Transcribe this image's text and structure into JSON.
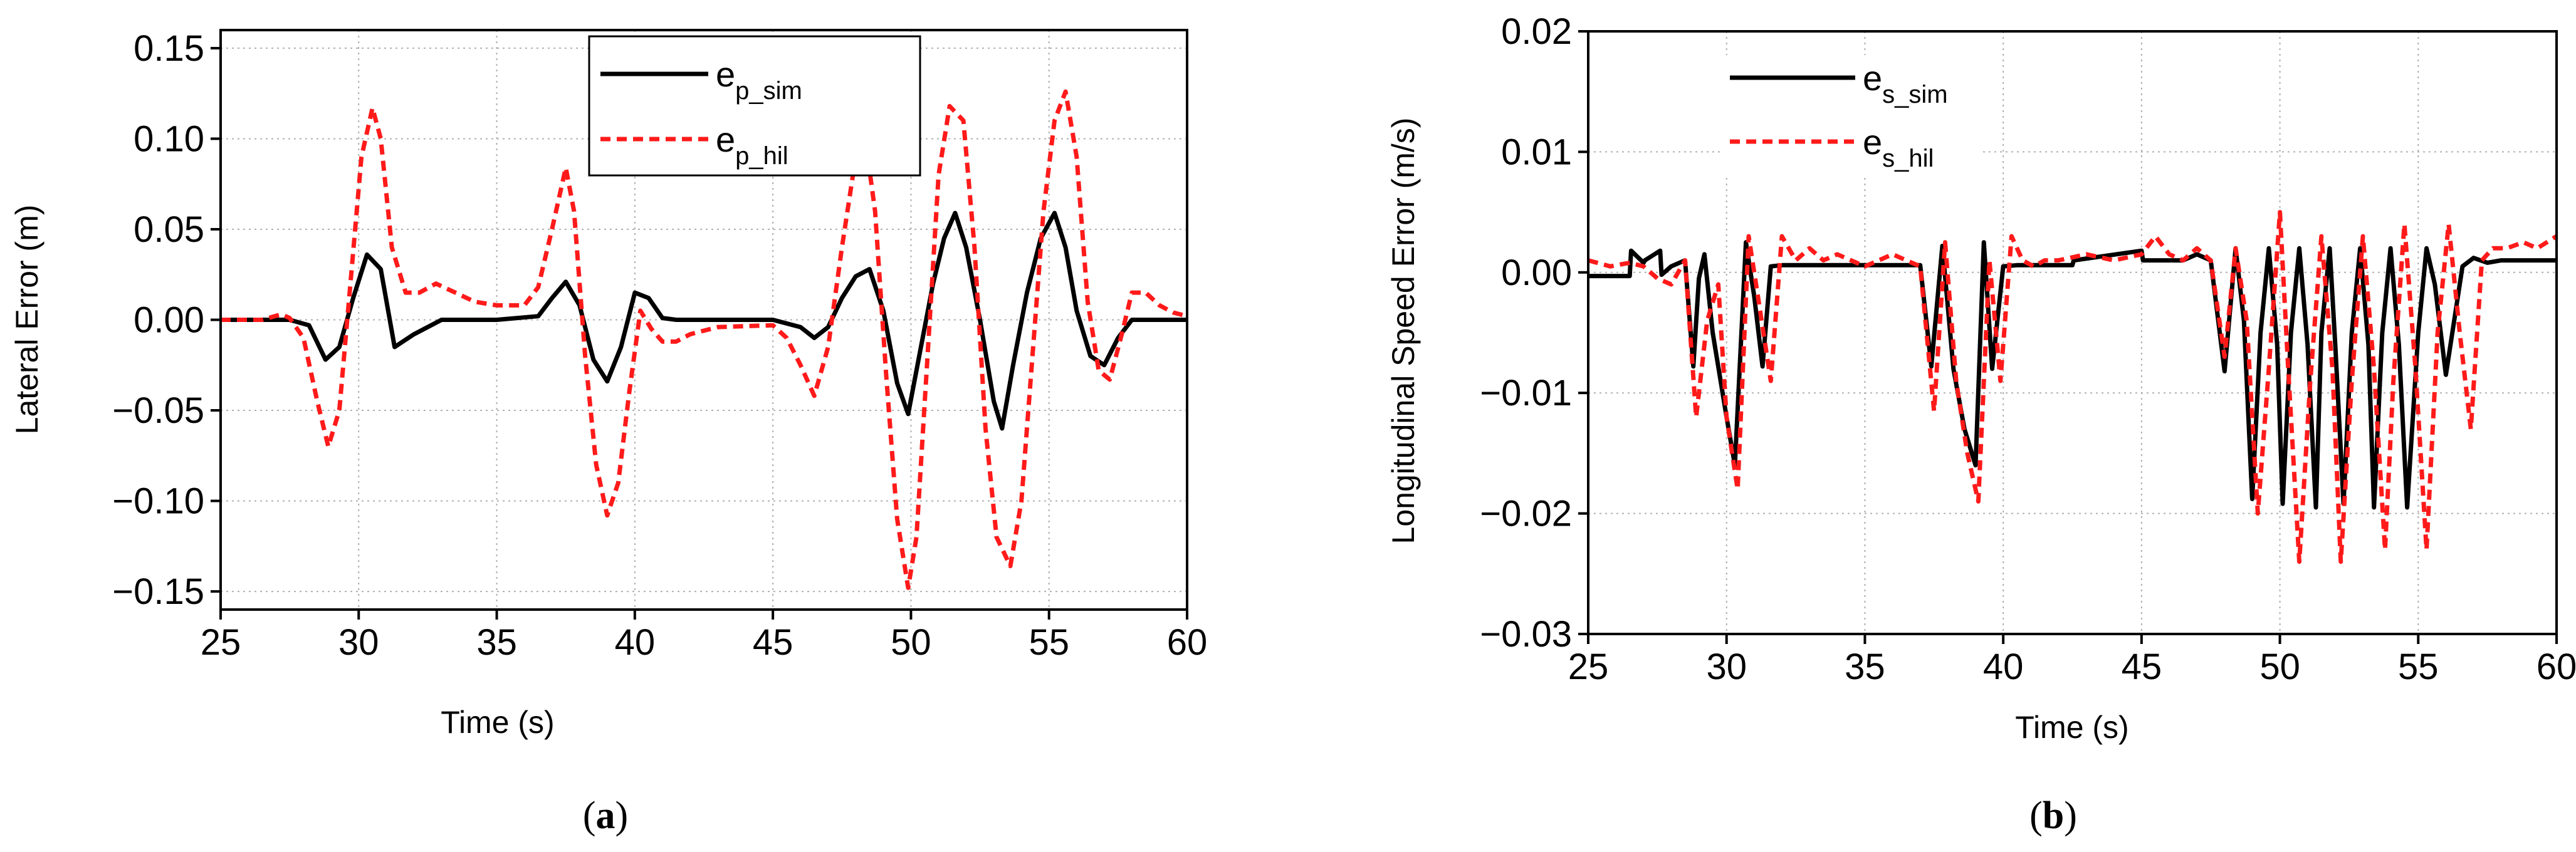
{
  "chart_data": [
    {
      "type": "line",
      "panel_label": "a",
      "xlabel": "Time (s)",
      "ylabel": "Lateral Error (m)",
      "xlim": [
        25,
        60
      ],
      "ylim": [
        -0.16,
        0.16
      ],
      "xticks": [
        25,
        30,
        35,
        40,
        45,
        50,
        55,
        60
      ],
      "yticks": [
        -0.15,
        -0.1,
        -0.05,
        0.0,
        0.05,
        0.1,
        0.15
      ],
      "ytick_labels": [
        "−0.15",
        "−0.10",
        "−0.05",
        "0.00",
        "0.05",
        "0.10",
        "0.15"
      ],
      "grid": true,
      "legend_position": "top-center",
      "series": [
        {
          "name": "e",
          "subscript": "p_sim",
          "color": "#000000",
          "style": "solid",
          "x": [
            25,
            27.5,
            28.2,
            28.8,
            29.3,
            29.8,
            30.3,
            30.8,
            31.3,
            32.0,
            33,
            35,
            36.5,
            37.0,
            37.5,
            38.0,
            38.5,
            39.0,
            39.5,
            40.0,
            40.5,
            41.0,
            41.5,
            42,
            45,
            46.0,
            46.5,
            47.0,
            47.5,
            48.0,
            48.5,
            49.0,
            49.5,
            49.9,
            50.3,
            50.8,
            51.2,
            51.6,
            52.0,
            52.5,
            53.0,
            53.3,
            53.7,
            54.2,
            54.7,
            55.2,
            55.6,
            56.0,
            56.5,
            57.0,
            57.5,
            58.0,
            58.5,
            59,
            60
          ],
          "values": [
            0,
            0,
            -0.003,
            -0.022,
            -0.015,
            0.012,
            0.036,
            0.028,
            -0.015,
            -0.008,
            0,
            0,
            0.002,
            0.012,
            0.021,
            0.008,
            -0.022,
            -0.034,
            -0.015,
            0.015,
            0.012,
            0.001,
            0,
            0,
            0,
            -0.004,
            -0.01,
            -0.004,
            0.012,
            0.024,
            0.028,
            0.005,
            -0.035,
            -0.052,
            -0.02,
            0.02,
            0.045,
            0.059,
            0.04,
            0,
            -0.045,
            -0.06,
            -0.025,
            0.015,
            0.045,
            0.059,
            0.04,
            0.005,
            -0.02,
            -0.025,
            -0.01,
            0,
            0,
            0,
            0
          ]
        },
        {
          "name": "e",
          "subscript": "p_hil",
          "color": "#ff1a1a",
          "style": "dashed",
          "x": [
            25,
            26.5,
            27.2,
            27.5,
            28.0,
            28.5,
            28.9,
            29.3,
            29.7,
            30.1,
            30.5,
            30.8,
            31.2,
            31.7,
            32.2,
            32.8,
            33.5,
            34.2,
            35,
            36.0,
            36.5,
            37.0,
            37.5,
            37.8,
            38.2,
            38.6,
            39.0,
            39.4,
            39.8,
            40.2,
            40.6,
            41.0,
            41.5,
            42.0,
            43,
            45,
            45.5,
            46.0,
            46.5,
            47.0,
            47.5,
            48.0,
            48.3,
            48.7,
            49.1,
            49.5,
            49.9,
            50.2,
            50.6,
            51.0,
            51.4,
            51.9,
            52.3,
            52.7,
            53.1,
            53.6,
            54.0,
            54.4,
            54.8,
            55.2,
            55.6,
            56.0,
            56.4,
            56.8,
            57.2,
            57.6,
            58.0,
            58.5,
            59.0,
            59.5,
            60
          ],
          "values": [
            0,
            0,
            0.003,
            0.001,
            -0.01,
            -0.045,
            -0.07,
            -0.05,
            0.02,
            0.09,
            0.117,
            0.1,
            0.04,
            0.015,
            0.015,
            0.02,
            0.015,
            0.01,
            0.008,
            0.008,
            0.018,
            0.05,
            0.084,
            0.06,
            -0.02,
            -0.08,
            -0.108,
            -0.09,
            -0.04,
            0.005,
            -0.005,
            -0.012,
            -0.012,
            -0.008,
            -0.004,
            -0.003,
            -0.01,
            -0.025,
            -0.042,
            -0.015,
            0.04,
            0.09,
            0.105,
            0.06,
            -0.03,
            -0.11,
            -0.148,
            -0.12,
            -0.02,
            0.08,
            0.118,
            0.11,
            0.04,
            -0.06,
            -0.12,
            -0.136,
            -0.1,
            -0.02,
            0.06,
            0.11,
            0.126,
            0.09,
            0.01,
            -0.028,
            -0.033,
            -0.01,
            0.015,
            0.015,
            0.008,
            0.004,
            0.002
          ]
        }
      ]
    },
    {
      "type": "line",
      "panel_label": "b",
      "xlabel": "Time (s)",
      "ylabel": "Longitudinal Speed Error (m/s)",
      "xlim": [
        25,
        60
      ],
      "ylim": [
        -0.03,
        0.02
      ],
      "xticks": [
        25,
        30,
        35,
        40,
        45,
        50,
        55,
        60
      ],
      "yticks": [
        -0.03,
        -0.02,
        -0.01,
        0.0,
        0.01,
        0.02
      ],
      "ytick_labels": [
        "−0.03",
        "−0.02",
        "−0.01",
        "0.00",
        "0.01",
        "0.02"
      ],
      "grid": true,
      "legend_position": "top-left",
      "series": [
        {
          "name": "e",
          "subscript": "s_sim",
          "color": "#000000",
          "style": "solid",
          "x": [
            25,
            26.5,
            26.55,
            27.0,
            27.05,
            27.6,
            27.65,
            28.0,
            28.5,
            28.8,
            29.0,
            29.2,
            29.5,
            30.0,
            30.3,
            30.7,
            31.0,
            31.3,
            31.6,
            32,
            36.5,
            37.0,
            37.4,
            37.8,
            38.2,
            38.6,
            39.0,
            39.3,
            39.6,
            40.0,
            40.5,
            42.5,
            42.55,
            45,
            45.05,
            46.5,
            47.0,
            47.5,
            48.0,
            48.4,
            48.7,
            49.0,
            49.3,
            49.6,
            49.9,
            50.1,
            50.4,
            50.7,
            51.0,
            51.3,
            51.5,
            51.8,
            52.0,
            52.3,
            52.6,
            52.9,
            53.2,
            53.4,
            53.7,
            54.0,
            54.3,
            54.6,
            55.0,
            55.3,
            55.6,
            56.0,
            56.6,
            57.0,
            57.5,
            58.0,
            58.5,
            59,
            60
          ],
          "values": [
            -0.0003,
            -0.0003,
            0.0018,
            0.0008,
            0.001,
            0.0018,
            -0.0002,
            0.0005,
            0.001,
            -0.0078,
            -0.0005,
            0.0015,
            -0.005,
            -0.012,
            -0.016,
            0.0025,
            -0.002,
            -0.0078,
            0.0005,
            0.0006,
            0.0006,
            0.0006,
            -0.0078,
            0.0022,
            -0.008,
            -0.013,
            -0.016,
            0.0025,
            -0.008,
            0.0005,
            0.0006,
            0.0006,
            0.001,
            0.0018,
            0.001,
            0.001,
            0.0015,
            0.001,
            -0.0082,
            0.002,
            -0.004,
            -0.0188,
            -0.005,
            0.002,
            -0.006,
            -0.0192,
            -0.005,
            0.002,
            -0.006,
            -0.0195,
            -0.005,
            0.002,
            -0.006,
            -0.0192,
            -0.005,
            0.002,
            -0.006,
            -0.0195,
            -0.005,
            0.002,
            -0.006,
            -0.0195,
            -0.005,
            0.002,
            -0.001,
            -0.0085,
            0.0005,
            0.0012,
            0.0008,
            0.001,
            0.001,
            0.001,
            0.001
          ]
        },
        {
          "name": "e",
          "subscript": "s_hil",
          "color": "#ff1a1a",
          "style": "dashed",
          "x": [
            25,
            25.8,
            26.5,
            27.0,
            27.5,
            28.0,
            28.5,
            28.9,
            29.3,
            29.7,
            30.0,
            30.4,
            30.8,
            31.2,
            31.6,
            32.0,
            32.5,
            33.0,
            33.5,
            34.0,
            34.5,
            35.0,
            35.5,
            36.0,
            36.5,
            37.0,
            37.5,
            37.9,
            38.3,
            38.7,
            39.1,
            39.5,
            39.9,
            40.3,
            40.7,
            41.1,
            41.5,
            42.0,
            43.0,
            44.0,
            45.0,
            45.5,
            46.0,
            46.5,
            47.0,
            47.5,
            48.0,
            48.4,
            48.8,
            49.2,
            49.6,
            50.0,
            50.3,
            50.7,
            51.1,
            51.5,
            51.9,
            52.2,
            52.6,
            53.0,
            53.4,
            53.8,
            54.1,
            54.5,
            54.9,
            55.3,
            55.7,
            56.1,
            56.5,
            56.9,
            57.3,
            57.7,
            58.2,
            58.8,
            59.3,
            60
          ],
          "values": [
            0.001,
            0.0005,
            0.0008,
            0.0005,
            -0.0005,
            -0.001,
            0.001,
            -0.012,
            -0.004,
            -0.001,
            -0.012,
            -0.018,
            0.003,
            -0.003,
            -0.009,
            0.003,
            0.001,
            0.002,
            0.001,
            0.0015,
            0.001,
            0.0005,
            0.001,
            0.0015,
            0.001,
            0.0005,
            -0.0115,
            0.0025,
            -0.009,
            -0.015,
            -0.019,
            0.001,
            -0.009,
            0.003,
            0.001,
            0.0005,
            0.001,
            0.001,
            0.0015,
            0.001,
            0.0015,
            0.003,
            0.0015,
            0.001,
            0.002,
            0.001,
            -0.007,
            0.002,
            -0.004,
            -0.02,
            -0.008,
            0.005,
            -0.008,
            -0.024,
            -0.009,
            0.003,
            -0.008,
            -0.024,
            -0.009,
            0.003,
            -0.008,
            -0.023,
            -0.009,
            0.004,
            -0.008,
            -0.023,
            -0.005,
            0.004,
            -0.005,
            -0.013,
            0.001,
            0.002,
            0.002,
            0.0025,
            0.002,
            0.003
          ]
        }
      ]
    }
  ]
}
